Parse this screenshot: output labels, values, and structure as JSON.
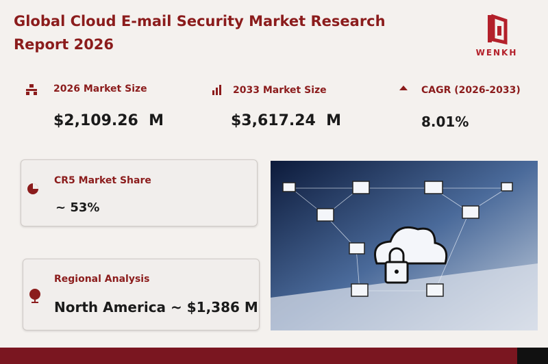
{
  "header": {
    "title": "Global Cloud E-mail Security Market Research Report 2026",
    "logo": "WENKH"
  },
  "stats": [
    {
      "label": "2026 Market Size",
      "value": "$2,109.26  M"
    },
    {
      "label": "2033 Market Size",
      "value": "$3,617.24  M"
    },
    {
      "label": "CAGR (2026-2033)",
      "value": "8.01%"
    }
  ],
  "cards": [
    {
      "label": "CR5 Market Share",
      "value": "~ 53%"
    },
    {
      "label": "Regional Analysis",
      "value": "North America ~ $1,386 M"
    }
  ]
}
